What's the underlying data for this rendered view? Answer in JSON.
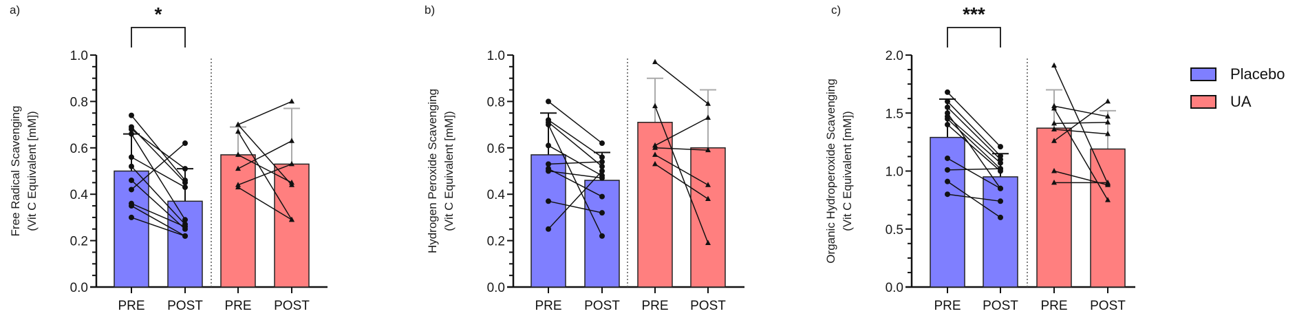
{
  "legend": {
    "items": [
      {
        "label": "Placebo",
        "color": "#7f7fff"
      },
      {
        "label": "UA",
        "color": "#ff7f7f"
      }
    ]
  },
  "chart_data": [
    {
      "type": "bar",
      "panel": "a)",
      "title": "",
      "ylabel": "Free Radical Scavenging (Vit C Equivalent [mM])",
      "ylabel_line1": "Free Radical Scavenging",
      "ylabel_line2": "(Vit C Equivalent [mM])",
      "ylim": [
        0,
        1.0
      ],
      "yticks": [
        "0.0",
        "0.2",
        "0.4",
        "0.6",
        "0.8",
        "1.0"
      ],
      "categories": [
        "PRE",
        "POST",
        "PRE",
        "POST"
      ],
      "groups": [
        "Placebo",
        "Placebo",
        "UA",
        "UA"
      ],
      "series": [
        {
          "name": "Placebo",
          "pre_mean": 0.5,
          "pre_sd_top": 0.66,
          "post_mean": 0.37,
          "post_sd_top": 0.51,
          "pairs": [
            [
              0.74,
              0.46
            ],
            [
              0.69,
              0.45
            ],
            [
              0.68,
              0.51
            ],
            [
              0.66,
              0.29
            ],
            [
              0.56,
              0.43
            ],
            [
              0.52,
              0.27
            ],
            [
              0.46,
              0.25
            ],
            [
              0.42,
              0.62
            ],
            [
              0.36,
              0.26
            ],
            [
              0.35,
              0.22
            ],
            [
              0.3,
              0.22
            ]
          ]
        },
        {
          "name": "UA",
          "pre_mean": 0.57,
          "pre_sd_top": 0.69,
          "post_mean": 0.53,
          "post_sd_top": 0.77,
          "pairs": [
            [
              0.7,
              0.8
            ],
            [
              0.7,
              0.44
            ],
            [
              0.67,
              0.29
            ],
            [
              0.57,
              0.45
            ],
            [
              0.51,
              0.63
            ],
            [
              0.44,
              0.53
            ],
            [
              0.43,
              0.29
            ]
          ]
        }
      ],
      "significance": {
        "label": "*",
        "between": [
          "Placebo PRE",
          "Placebo POST"
        ]
      }
    },
    {
      "type": "bar",
      "panel": "b)",
      "title": "",
      "ylabel": "Hydrogen Peroxide Scavenging (Vit C Equivalent [mM])",
      "ylabel_line1": "Hydrogen Peroxide Scavenging",
      "ylabel_line2": "(Vit C Equivalent [mM])",
      "ylim": [
        0,
        1.0
      ],
      "yticks": [
        "0.0",
        "0.2",
        "0.4",
        "0.6",
        "0.8",
        "1.0"
      ],
      "categories": [
        "PRE",
        "POST",
        "PRE",
        "POST"
      ],
      "groups": [
        "Placebo",
        "Placebo",
        "UA",
        "UA"
      ],
      "series": [
        {
          "name": "Placebo",
          "pre_mean": 0.57,
          "pre_sd_top": 0.75,
          "post_mean": 0.46,
          "post_sd_top": 0.58,
          "pairs": [
            [
              0.8,
              0.62
            ],
            [
              0.72,
              0.56
            ],
            [
              0.71,
              0.52
            ],
            [
              0.7,
              0.22
            ],
            [
              0.61,
              0.48
            ],
            [
              0.53,
              0.54
            ],
            [
              0.51,
              0.39
            ],
            [
              0.5,
              0.47
            ],
            [
              0.37,
              0.32
            ],
            [
              0.25,
              0.5
            ]
          ]
        },
        {
          "name": "UA",
          "pre_mean": 0.71,
          "pre_sd_top": 0.9,
          "post_mean": 0.6,
          "post_sd_top": 0.85,
          "pairs": [
            [
              0.97,
              0.79
            ],
            [
              0.78,
              0.19
            ],
            [
              0.61,
              0.73
            ],
            [
              0.6,
              0.59
            ],
            [
              0.57,
              0.44
            ],
            [
              0.53,
              0.38
            ]
          ]
        }
      ],
      "significance": null
    },
    {
      "type": "bar",
      "panel": "c)",
      "title": "",
      "ylabel": "Organic Hydroperoxide Scavenging (Vit C Equivalent [mM])",
      "ylabel_line1": "Organic Hydroperoxide Scavenging",
      "ylabel_line2": "(Vit C Equivalent [mM])",
      "ylim": [
        0,
        2.0
      ],
      "yticks": [
        "0.0",
        "0.5",
        "1.0",
        "1.5",
        "2.0"
      ],
      "categories": [
        "PRE",
        "POST",
        "PRE",
        "POST"
      ],
      "groups": [
        "Placebo",
        "Placebo",
        "UA",
        "UA"
      ],
      "series": [
        {
          "name": "Placebo",
          "pre_mean": 1.29,
          "pre_sd_top": 1.62,
          "post_mean": 0.95,
          "post_sd_top": 1.15,
          "pairs": [
            [
              1.68,
              1.21
            ],
            [
              1.6,
              1.13
            ],
            [
              1.55,
              1.1
            ],
            [
              1.5,
              0.85
            ],
            [
              1.47,
              1.07
            ],
            [
              1.45,
              1.02
            ],
            [
              1.4,
              1.0
            ],
            [
              1.11,
              0.85
            ],
            [
              1.01,
              1.02
            ],
            [
              0.91,
              0.6
            ],
            [
              0.8,
              0.74
            ]
          ]
        },
        {
          "name": "UA",
          "pre_mean": 1.37,
          "pre_sd_top": 1.7,
          "post_mean": 1.19,
          "post_sd_top": 1.52,
          "pairs": [
            [
              1.91,
              0.89
            ],
            [
              1.56,
              1.47
            ],
            [
              1.54,
              0.75
            ],
            [
              1.41,
              1.42
            ],
            [
              1.36,
              1.32
            ],
            [
              1.26,
              1.6
            ],
            [
              1.0,
              0.88
            ],
            [
              0.9,
              0.9
            ]
          ]
        }
      ],
      "significance": {
        "label": "***",
        "between": [
          "Placebo PRE",
          "Placebo POST"
        ]
      }
    }
  ]
}
